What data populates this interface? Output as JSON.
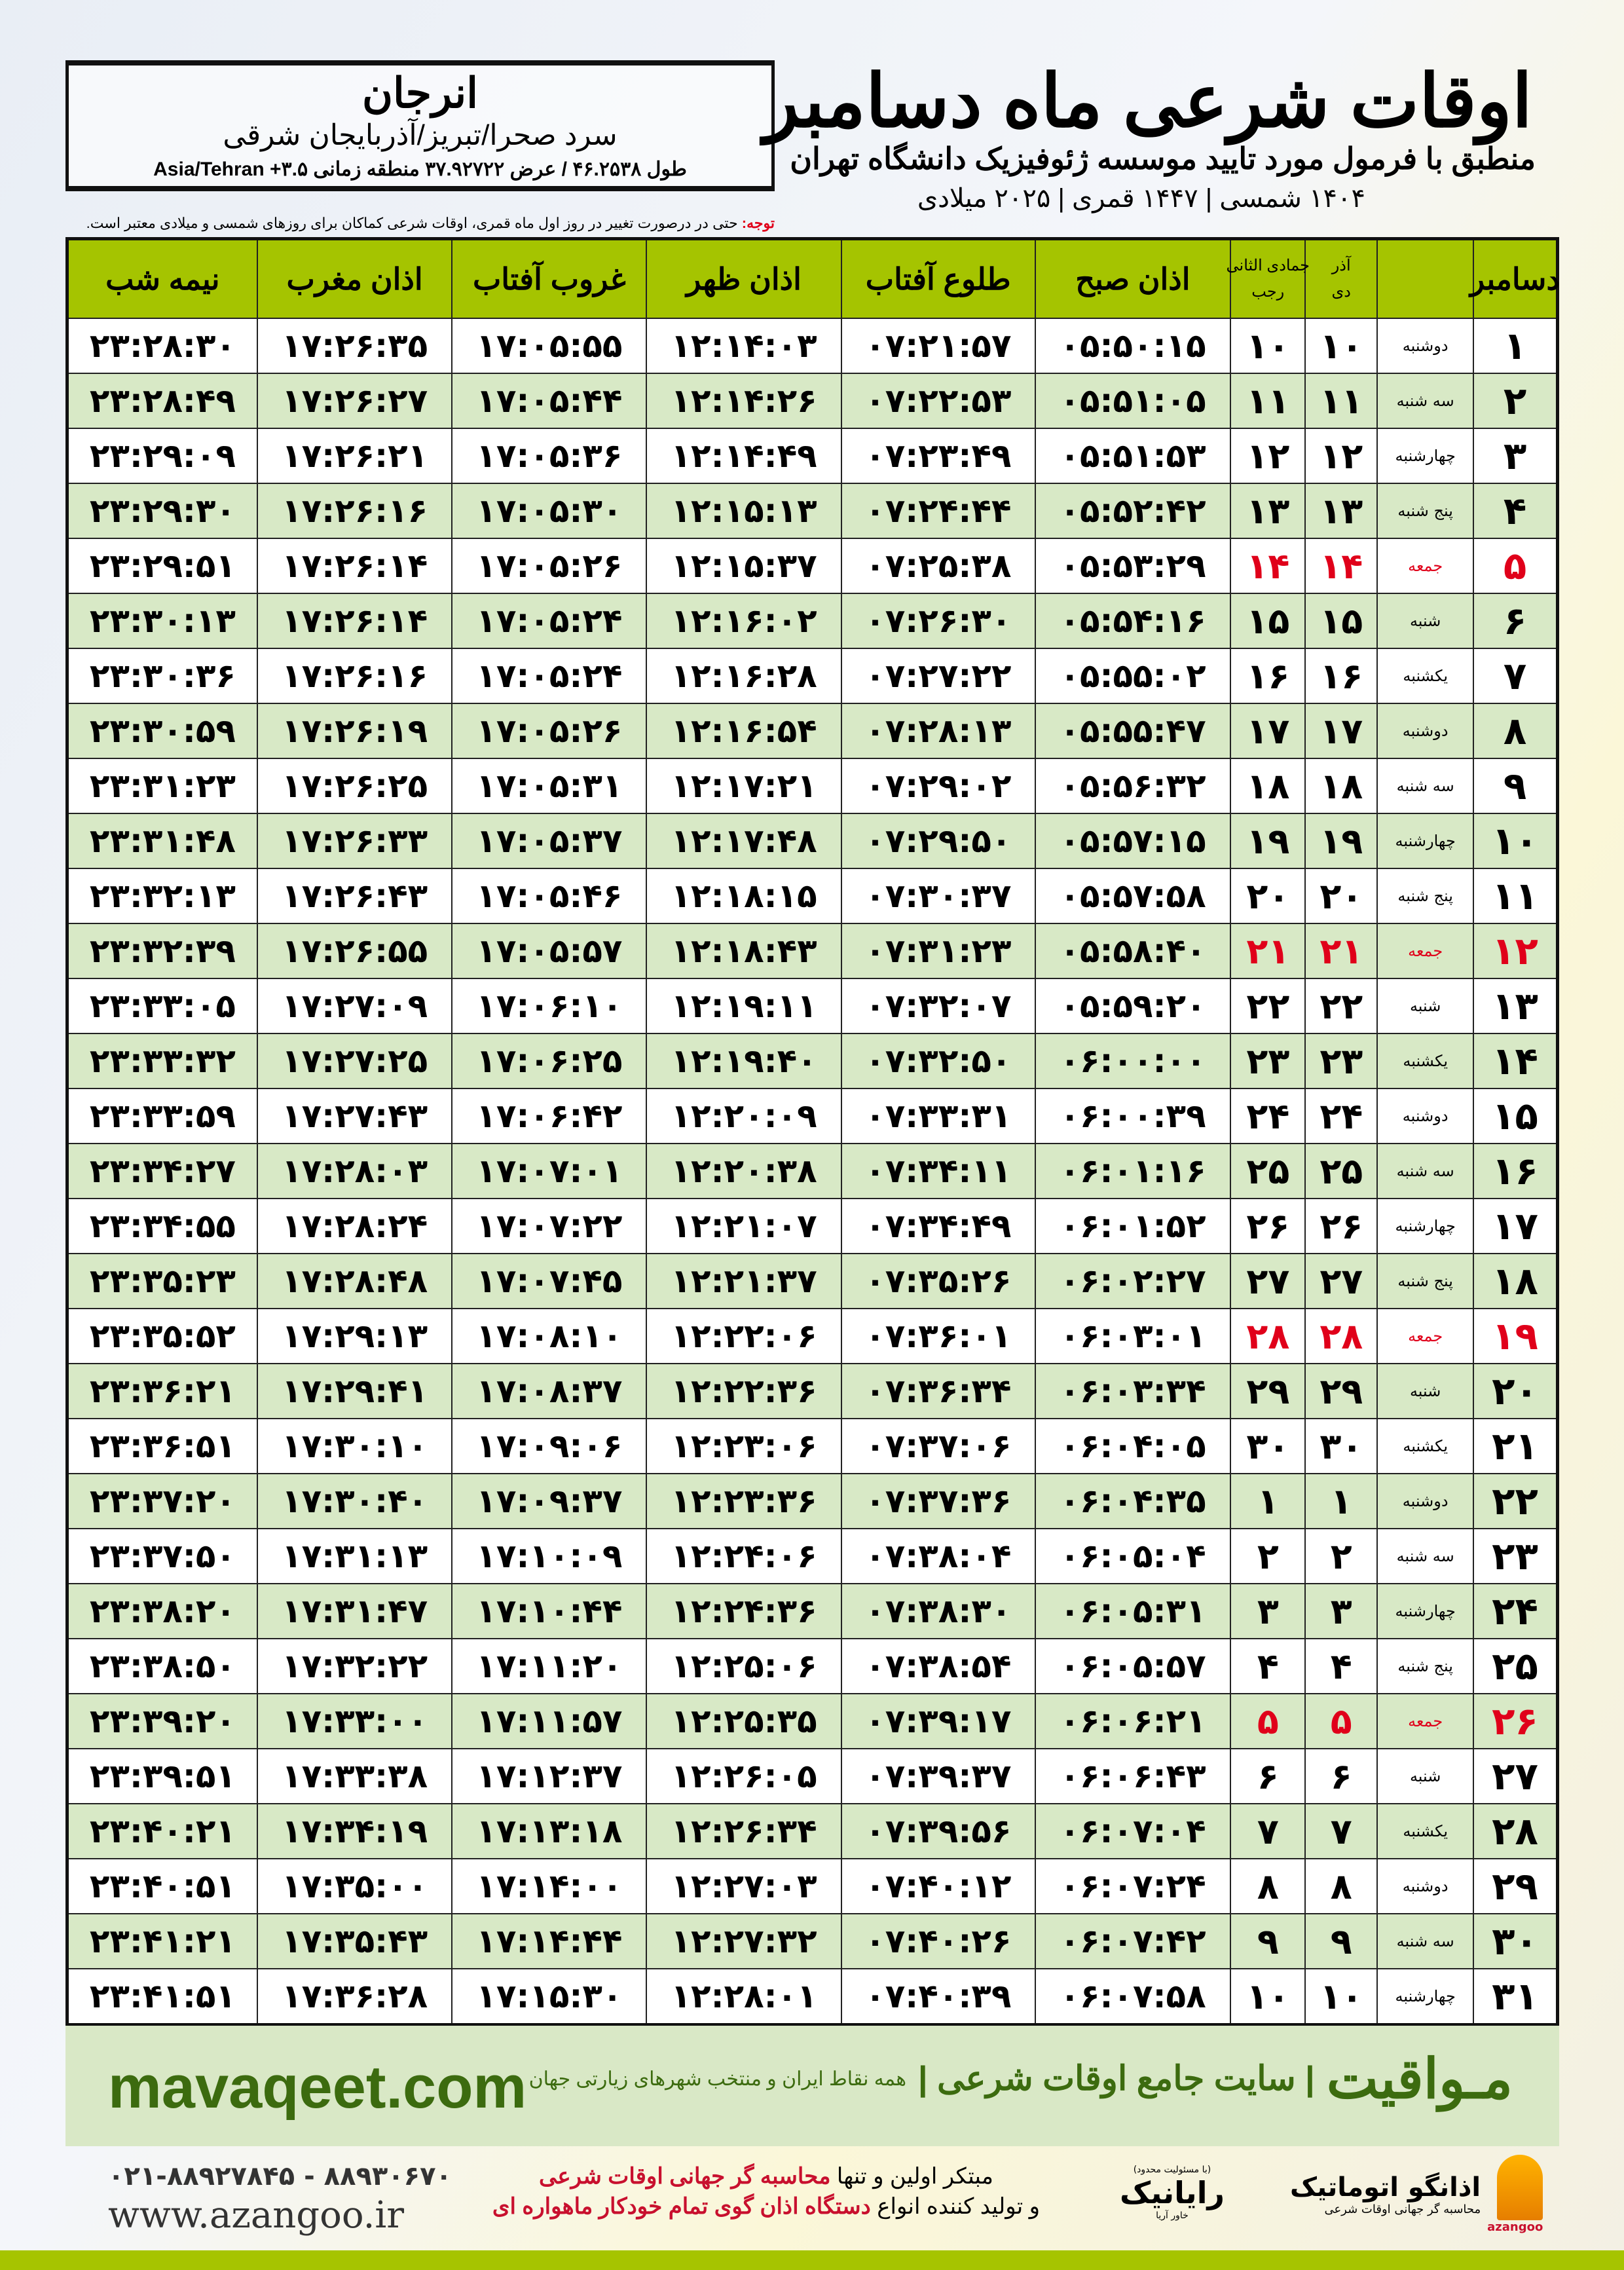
{
  "header": {
    "title": "اوقات شرعی ماه دسامبر",
    "subtitle": "منطبق با فرمول مورد تایید موسسه ژئوفیزیک دانشگاه تهران",
    "dateline": "۱۴۰۴ شمسی | ۱۴۴۷ قمری | ۲۰۲۵ میلادی"
  },
  "location": {
    "city": "انرجان",
    "region": "سرد صحرا/تبریز/آذربایجان شرقی",
    "coords": "طول ۴۶.۲۵۳۸ / عرض ۳۷.۹۲۷۲۲ منطقه زمانی ۳.۵+ Asia/Tehran"
  },
  "note": {
    "label": "توجه:",
    "text": " حتی در درصورت تغییر در روز اول ماه قمری، اوقات شرعی کماکان برای روزهای شمسی و میلادی معتبر است."
  },
  "colors": {
    "header_green": "#a5c400",
    "alt_row": "#d8e9c6",
    "friday_red": "#e0001a",
    "brand_green": "#3c6b0f"
  },
  "table": {
    "headers": {
      "month": "دسامبر",
      "shamsi_top": "آذر",
      "shamsi_bottom": "دی",
      "hijri_top": "جمادی الثانی",
      "hijri_bottom": "رجب",
      "fajr": "اذان صبح",
      "sunrise": "طلوع آفتاب",
      "dhuhr": "اذان ظهر",
      "sunset": "غروب آفتاب",
      "maghrib": "اذان مغرب",
      "midnight": "نیمه شب"
    },
    "rows": [
      {
        "day": "۱",
        "weekday": "دوشنبه",
        "shamsi": "۱۰",
        "hijri": "۱۰",
        "fajr": "۰۵:۵۰:۱۵",
        "sunrise": "۰۷:۲۱:۵۷",
        "dhuhr": "۱۲:۱۴:۰۳",
        "sunset": "۱۷:۰۵:۵۵",
        "maghrib": "۱۷:۲۶:۳۵",
        "midnight": "۲۳:۲۸:۳۰"
      },
      {
        "day": "۲",
        "weekday": "سه شنبه",
        "shamsi": "۱۱",
        "hijri": "۱۱",
        "fajr": "۰۵:۵۱:۰۵",
        "sunrise": "۰۷:۲۲:۵۳",
        "dhuhr": "۱۲:۱۴:۲۶",
        "sunset": "۱۷:۰۵:۴۴",
        "maghrib": "۱۷:۲۶:۲۷",
        "midnight": "۲۳:۲۸:۴۹"
      },
      {
        "day": "۳",
        "weekday": "چهارشنبه",
        "shamsi": "۱۲",
        "hijri": "۱۲",
        "fajr": "۰۵:۵۱:۵۳",
        "sunrise": "۰۷:۲۳:۴۹",
        "dhuhr": "۱۲:۱۴:۴۹",
        "sunset": "۱۷:۰۵:۳۶",
        "maghrib": "۱۷:۲۶:۲۱",
        "midnight": "۲۳:۲۹:۰۹"
      },
      {
        "day": "۴",
        "weekday": "پنج شنبه",
        "shamsi": "۱۳",
        "hijri": "۱۳",
        "fajr": "۰۵:۵۲:۴۲",
        "sunrise": "۰۷:۲۴:۴۴",
        "dhuhr": "۱۲:۱۵:۱۳",
        "sunset": "۱۷:۰۵:۳۰",
        "maghrib": "۱۷:۲۶:۱۶",
        "midnight": "۲۳:۲۹:۳۰"
      },
      {
        "day": "۵",
        "weekday": "جمعه",
        "friday": true,
        "shamsi": "۱۴",
        "hijri": "۱۴",
        "fajr": "۰۵:۵۳:۲۹",
        "sunrise": "۰۷:۲۵:۳۸",
        "dhuhr": "۱۲:۱۵:۳۷",
        "sunset": "۱۷:۰۵:۲۶",
        "maghrib": "۱۷:۲۶:۱۴",
        "midnight": "۲۳:۲۹:۵۱"
      },
      {
        "day": "۶",
        "weekday": "شنبه",
        "shamsi": "۱۵",
        "hijri": "۱۵",
        "fajr": "۰۵:۵۴:۱۶",
        "sunrise": "۰۷:۲۶:۳۰",
        "dhuhr": "۱۲:۱۶:۰۲",
        "sunset": "۱۷:۰۵:۲۴",
        "maghrib": "۱۷:۲۶:۱۴",
        "midnight": "۲۳:۳۰:۱۳"
      },
      {
        "day": "۷",
        "weekday": "یکشنبه",
        "shamsi": "۱۶",
        "hijri": "۱۶",
        "fajr": "۰۵:۵۵:۰۲",
        "sunrise": "۰۷:۲۷:۲۲",
        "dhuhr": "۱۲:۱۶:۲۸",
        "sunset": "۱۷:۰۵:۲۴",
        "maghrib": "۱۷:۲۶:۱۶",
        "midnight": "۲۳:۳۰:۳۶"
      },
      {
        "day": "۸",
        "weekday": "دوشنبه",
        "shamsi": "۱۷",
        "hijri": "۱۷",
        "fajr": "۰۵:۵۵:۴۷",
        "sunrise": "۰۷:۲۸:۱۳",
        "dhuhr": "۱۲:۱۶:۵۴",
        "sunset": "۱۷:۰۵:۲۶",
        "maghrib": "۱۷:۲۶:۱۹",
        "midnight": "۲۳:۳۰:۵۹"
      },
      {
        "day": "۹",
        "weekday": "سه شنبه",
        "shamsi": "۱۸",
        "hijri": "۱۸",
        "fajr": "۰۵:۵۶:۳۲",
        "sunrise": "۰۷:۲۹:۰۲",
        "dhuhr": "۱۲:۱۷:۲۱",
        "sunset": "۱۷:۰۵:۳۱",
        "maghrib": "۱۷:۲۶:۲۵",
        "midnight": "۲۳:۳۱:۲۳"
      },
      {
        "day": "۱۰",
        "weekday": "چهارشنبه",
        "shamsi": "۱۹",
        "hijri": "۱۹",
        "fajr": "۰۵:۵۷:۱۵",
        "sunrise": "۰۷:۲۹:۵۰",
        "dhuhr": "۱۲:۱۷:۴۸",
        "sunset": "۱۷:۰۵:۳۷",
        "maghrib": "۱۷:۲۶:۳۳",
        "midnight": "۲۳:۳۱:۴۸"
      },
      {
        "day": "۱۱",
        "weekday": "پنج شنبه",
        "shamsi": "۲۰",
        "hijri": "۲۰",
        "fajr": "۰۵:۵۷:۵۸",
        "sunrise": "۰۷:۳۰:۳۷",
        "dhuhr": "۱۲:۱۸:۱۵",
        "sunset": "۱۷:۰۵:۴۶",
        "maghrib": "۱۷:۲۶:۴۳",
        "midnight": "۲۳:۳۲:۱۳"
      },
      {
        "day": "۱۲",
        "weekday": "جمعه",
        "friday": true,
        "shamsi": "۲۱",
        "hijri": "۲۱",
        "fajr": "۰۵:۵۸:۴۰",
        "sunrise": "۰۷:۳۱:۲۳",
        "dhuhr": "۱۲:۱۸:۴۳",
        "sunset": "۱۷:۰۵:۵۷",
        "maghrib": "۱۷:۲۶:۵۵",
        "midnight": "۲۳:۳۲:۳۹"
      },
      {
        "day": "۱۳",
        "weekday": "شنبه",
        "shamsi": "۲۲",
        "hijri": "۲۲",
        "fajr": "۰۵:۵۹:۲۰",
        "sunrise": "۰۷:۳۲:۰۷",
        "dhuhr": "۱۲:۱۹:۱۱",
        "sunset": "۱۷:۰۶:۱۰",
        "maghrib": "۱۷:۲۷:۰۹",
        "midnight": "۲۳:۳۳:۰۵"
      },
      {
        "day": "۱۴",
        "weekday": "یکشنبه",
        "shamsi": "۲۳",
        "hijri": "۲۳",
        "fajr": "۰۶:۰۰:۰۰",
        "sunrise": "۰۷:۳۲:۵۰",
        "dhuhr": "۱۲:۱۹:۴۰",
        "sunset": "۱۷:۰۶:۲۵",
        "maghrib": "۱۷:۲۷:۲۵",
        "midnight": "۲۳:۳۳:۳۲"
      },
      {
        "day": "۱۵",
        "weekday": "دوشنبه",
        "shamsi": "۲۴",
        "hijri": "۲۴",
        "fajr": "۰۶:۰۰:۳۹",
        "sunrise": "۰۷:۳۳:۳۱",
        "dhuhr": "۱۲:۲۰:۰۹",
        "sunset": "۱۷:۰۶:۴۲",
        "maghrib": "۱۷:۲۷:۴۳",
        "midnight": "۲۳:۳۳:۵۹"
      },
      {
        "day": "۱۶",
        "weekday": "سه شنبه",
        "shamsi": "۲۵",
        "hijri": "۲۵",
        "fajr": "۰۶:۰۱:۱۶",
        "sunrise": "۰۷:۳۴:۱۱",
        "dhuhr": "۱۲:۲۰:۳۸",
        "sunset": "۱۷:۰۷:۰۱",
        "maghrib": "۱۷:۲۸:۰۳",
        "midnight": "۲۳:۳۴:۲۷"
      },
      {
        "day": "۱۷",
        "weekday": "چهارشنبه",
        "shamsi": "۲۶",
        "hijri": "۲۶",
        "fajr": "۰۶:۰۱:۵۲",
        "sunrise": "۰۷:۳۴:۴۹",
        "dhuhr": "۱۲:۲۱:۰۷",
        "sunset": "۱۷:۰۷:۲۲",
        "maghrib": "۱۷:۲۸:۲۴",
        "midnight": "۲۳:۳۴:۵۵"
      },
      {
        "day": "۱۸",
        "weekday": "پنج شنبه",
        "shamsi": "۲۷",
        "hijri": "۲۷",
        "fajr": "۰۶:۰۲:۲۷",
        "sunrise": "۰۷:۳۵:۲۶",
        "dhuhr": "۱۲:۲۱:۳۷",
        "sunset": "۱۷:۰۷:۴۵",
        "maghrib": "۱۷:۲۸:۴۸",
        "midnight": "۲۳:۳۵:۲۳"
      },
      {
        "day": "۱۹",
        "weekday": "جمعه",
        "friday": true,
        "shamsi": "۲۸",
        "hijri": "۲۸",
        "fajr": "۰۶:۰۳:۰۱",
        "sunrise": "۰۷:۳۶:۰۱",
        "dhuhr": "۱۲:۲۲:۰۶",
        "sunset": "۱۷:۰۸:۱۰",
        "maghrib": "۱۷:۲۹:۱۳",
        "midnight": "۲۳:۳۵:۵۲"
      },
      {
        "day": "۲۰",
        "weekday": "شنبه",
        "shamsi": "۲۹",
        "hijri": "۲۹",
        "fajr": "۰۶:۰۳:۳۴",
        "sunrise": "۰۷:۳۶:۳۴",
        "dhuhr": "۱۲:۲۲:۳۶",
        "sunset": "۱۷:۰۸:۳۷",
        "maghrib": "۱۷:۲۹:۴۱",
        "midnight": "۲۳:۳۶:۲۱"
      },
      {
        "day": "۲۱",
        "weekday": "یکشنبه",
        "shamsi": "۳۰",
        "hijri": "۳۰",
        "fajr": "۰۶:۰۴:۰۵",
        "sunrise": "۰۷:۳۷:۰۶",
        "dhuhr": "۱۲:۲۳:۰۶",
        "sunset": "۱۷:۰۹:۰۶",
        "maghrib": "۱۷:۳۰:۱۰",
        "midnight": "۲۳:۳۶:۵۱"
      },
      {
        "day": "۲۲",
        "weekday": "دوشنبه",
        "shamsi": "۱",
        "hijri": "۱",
        "fajr": "۰۶:۰۴:۳۵",
        "sunrise": "۰۷:۳۷:۳۶",
        "dhuhr": "۱۲:۲۳:۳۶",
        "sunset": "۱۷:۰۹:۳۷",
        "maghrib": "۱۷:۳۰:۴۰",
        "midnight": "۲۳:۳۷:۲۰"
      },
      {
        "day": "۲۳",
        "weekday": "سه شنبه",
        "shamsi": "۲",
        "hijri": "۲",
        "fajr": "۰۶:۰۵:۰۴",
        "sunrise": "۰۷:۳۸:۰۴",
        "dhuhr": "۱۲:۲۴:۰۶",
        "sunset": "۱۷:۱۰:۰۹",
        "maghrib": "۱۷:۳۱:۱۳",
        "midnight": "۲۳:۳۷:۵۰"
      },
      {
        "day": "۲۴",
        "weekday": "چهارشنبه",
        "shamsi": "۳",
        "hijri": "۳",
        "fajr": "۰۶:۰۵:۳۱",
        "sunrise": "۰۷:۳۸:۳۰",
        "dhuhr": "۱۲:۲۴:۳۶",
        "sunset": "۱۷:۱۰:۴۴",
        "maghrib": "۱۷:۳۱:۴۷",
        "midnight": "۲۳:۳۸:۲۰"
      },
      {
        "day": "۲۵",
        "weekday": "پنج شنبه",
        "shamsi": "۴",
        "hijri": "۴",
        "fajr": "۰۶:۰۵:۵۷",
        "sunrise": "۰۷:۳۸:۵۴",
        "dhuhr": "۱۲:۲۵:۰۶",
        "sunset": "۱۷:۱۱:۲۰",
        "maghrib": "۱۷:۳۲:۲۲",
        "midnight": "۲۳:۳۸:۵۰"
      },
      {
        "day": "۲۶",
        "weekday": "جمعه",
        "friday": true,
        "shamsi": "۵",
        "hijri": "۵",
        "fajr": "۰۶:۰۶:۲۱",
        "sunrise": "۰۷:۳۹:۱۷",
        "dhuhr": "۱۲:۲۵:۳۵",
        "sunset": "۱۷:۱۱:۵۷",
        "maghrib": "۱۷:۳۳:۰۰",
        "midnight": "۲۳:۳۹:۲۰"
      },
      {
        "day": "۲۷",
        "weekday": "شنبه",
        "shamsi": "۶",
        "hijri": "۶",
        "fajr": "۰۶:۰۶:۴۳",
        "sunrise": "۰۷:۳۹:۳۷",
        "dhuhr": "۱۲:۲۶:۰۵",
        "sunset": "۱۷:۱۲:۳۷",
        "maghrib": "۱۷:۳۳:۳۸",
        "midnight": "۲۳:۳۹:۵۱"
      },
      {
        "day": "۲۸",
        "weekday": "یکشنبه",
        "shamsi": "۷",
        "hijri": "۷",
        "fajr": "۰۶:۰۷:۰۴",
        "sunrise": "۰۷:۳۹:۵۶",
        "dhuhr": "۱۲:۲۶:۳۴",
        "sunset": "۱۷:۱۳:۱۸",
        "maghrib": "۱۷:۳۴:۱۹",
        "midnight": "۲۳:۴۰:۲۱"
      },
      {
        "day": "۲۹",
        "weekday": "دوشنبه",
        "shamsi": "۸",
        "hijri": "۸",
        "fajr": "۰۶:۰۷:۲۴",
        "sunrise": "۰۷:۴۰:۱۲",
        "dhuhr": "۱۲:۲۷:۰۳",
        "sunset": "۱۷:۱۴:۰۰",
        "maghrib": "۱۷:۳۵:۰۰",
        "midnight": "۲۳:۴۰:۵۱"
      },
      {
        "day": "۳۰",
        "weekday": "سه شنبه",
        "shamsi": "۹",
        "hijri": "۹",
        "fajr": "۰۶:۰۷:۴۲",
        "sunrise": "۰۷:۴۰:۲۶",
        "dhuhr": "۱۲:۲۷:۳۲",
        "sunset": "۱۷:۱۴:۴۴",
        "maghrib": "۱۷:۳۵:۴۳",
        "midnight": "۲۳:۴۱:۲۱"
      },
      {
        "day": "۳۱",
        "weekday": "چهارشنبه",
        "shamsi": "۱۰",
        "hijri": "۱۰",
        "fajr": "۰۶:۰۷:۵۸",
        "sunrise": "۰۷:۴۰:۳۹",
        "dhuhr": "۱۲:۲۸:۰۱",
        "sunset": "۱۷:۱۵:۳۰",
        "maghrib": "۱۷:۳۶:۲۸",
        "midnight": "۲۳:۴۱:۵۱"
      }
    ]
  },
  "footer": {
    "brand": "مـواقیت",
    "brand_tagline": "| سایت جامع اوقات شرعی |",
    "brand_sub": "همه نقاط ایران و منتخب شهرهای زیارتی جهان",
    "site": "mavaqeet.com",
    "phone": "۰۲۱-۸۸۹۲۷۸۴۵ - ۸۸۹۳۰۶۷۰",
    "web": "www.azangoo.ir",
    "promo_line1_a": "مبتکر اولین و تنها ",
    "promo_line1_b": "محاسبه گر جهانی اوقات شرعی",
    "promo_line2_a": "و تولید کننده انواع ",
    "promo_line2_b": "دستگاه اذان گوی تمام خودکار ماهواره ای",
    "rayanik_note": "(با مسئولیت محدود)",
    "rayanik_name": "رایانیک",
    "rayanik_sub": "خاور آریا",
    "azangoo_name": "اذانگو اتوماتیک",
    "azangoo_sub": "محاسبه گر جهانی اوقات شرعی",
    "azangoo_en": "azangoo"
  }
}
